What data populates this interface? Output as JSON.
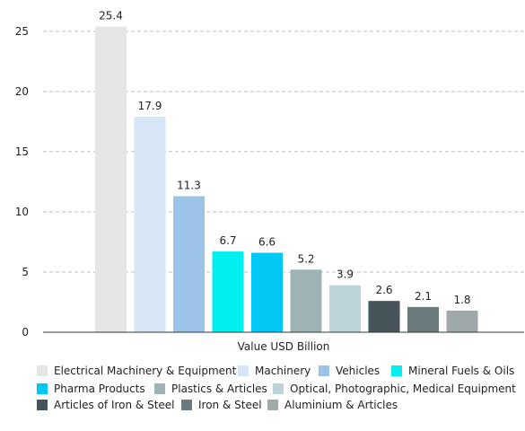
{
  "chart_data": {
    "type": "bar",
    "categories": [
      "Electrical Machinery & Equipment",
      "Machinery",
      "Vehicles",
      "Mineral Fuels & Oils",
      "Pharma Products",
      "Plastics & Articles",
      "Optical, Photographic, Medical Equipment",
      "Articles of Iron & Steel",
      "Iron & Steel",
      "Aluminium & Articles"
    ],
    "values": [
      25.4,
      17.9,
      11.3,
      6.7,
      6.6,
      5.2,
      3.9,
      2.6,
      2.1,
      1.8
    ],
    "data_labels": [
      "25.4",
      "17.9",
      "11.3",
      "6.7",
      "6.6",
      "5.2",
      "3.9",
      "2.6",
      "2.1",
      "1.8"
    ],
    "colors": [
      "#e6e6e6",
      "#d6e6f7",
      "#9cc4e8",
      "#00f0f0",
      "#00c8f5",
      "#9db3b6",
      "#bcd4d8",
      "#46555a",
      "#6a7a7d",
      "#9fa9aa"
    ],
    "xlabel": "Value USD Billion",
    "ylabel": "",
    "ylim": [
      0,
      27
    ],
    "y_ticks": [
      0,
      5,
      10,
      15,
      20,
      25
    ],
    "grid": true,
    "legend_position": "bottom"
  }
}
